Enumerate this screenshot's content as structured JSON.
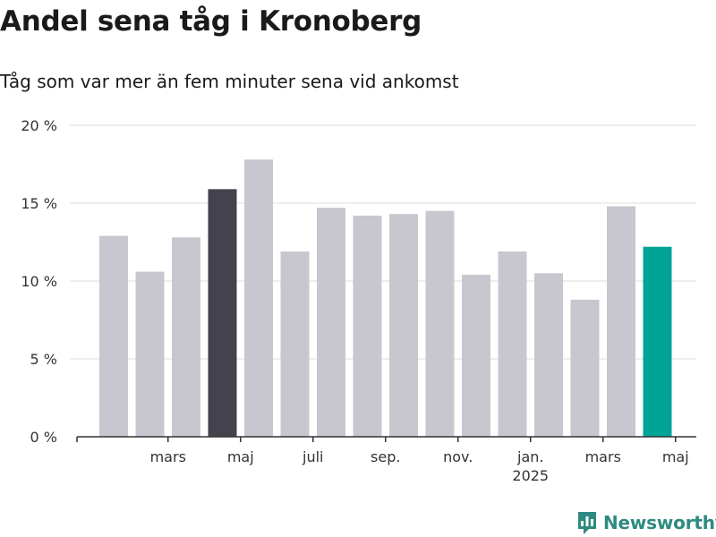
{
  "title": "Andel sena tåg i Kronoberg",
  "subtitle": "Tåg som var mer än fem minuter sena vid ankomst",
  "brand": "Newsworthy",
  "colors": {
    "default_bar": "#c8c7d0",
    "highlight_past": "#43424d",
    "highlight_latest": "#00a497",
    "grid": "#dcdcdc",
    "axis": "#333333",
    "brand": "#2e8a80"
  },
  "chart_data": {
    "type": "bar",
    "title": "Andel sena tåg i Kronoberg",
    "subtitle": "Tåg som var mer än fem minuter sena vid ankomst",
    "xlabel": "",
    "ylabel": "",
    "ylim": [
      0,
      20
    ],
    "yticks": [
      0,
      5,
      10,
      15,
      20
    ],
    "ytick_labels": [
      "0 %",
      "5 %",
      "10 %",
      "15 %",
      "20 %"
    ],
    "grid": true,
    "categories": [
      "2024-02",
      "2024-03",
      "2024-04",
      "2024-05",
      "2024-06",
      "2024-07",
      "2024-08",
      "2024-09",
      "2024-10",
      "2024-11",
      "2024-12",
      "2025-01",
      "2025-02",
      "2025-03",
      "2025-04",
      "2025-05"
    ],
    "values": [
      12.9,
      10.6,
      12.8,
      15.9,
      17.8,
      11.9,
      14.7,
      14.2,
      14.3,
      14.5,
      10.4,
      11.9,
      10.5,
      8.8,
      14.8,
      12.2
    ],
    "highlights": {
      "3": "highlight_past",
      "15": "highlight_latest"
    },
    "xtick_labels": [
      {
        "index": 1,
        "label": "mars"
      },
      {
        "index": 3,
        "label": "maj"
      },
      {
        "index": 5,
        "label": "juli"
      },
      {
        "index": 7,
        "label": "sep."
      },
      {
        "index": 9,
        "label": "nov."
      },
      {
        "index": 11,
        "label": "jan.",
        "sub": "2025"
      },
      {
        "index": 13,
        "label": "mars"
      },
      {
        "index": 15,
        "label": "maj"
      }
    ]
  }
}
